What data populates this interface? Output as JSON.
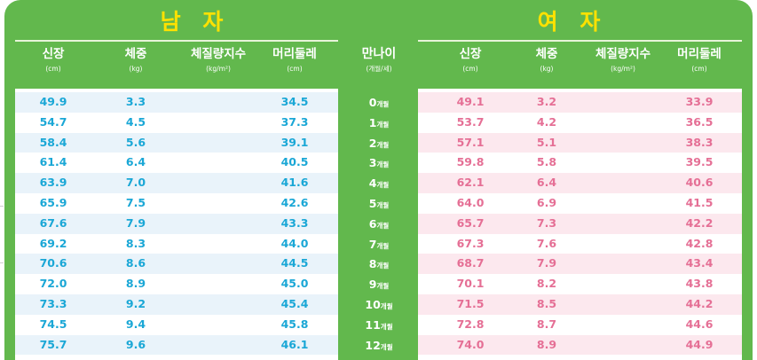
{
  "male": {
    "title": "남 자",
    "headers": [
      {
        "label": "신장",
        "unit": "(cm)"
      },
      {
        "label": "체중",
        "unit": "(kg)"
      },
      {
        "label": "체질량지수",
        "unit": "(kg/m²)"
      },
      {
        "label": "머리둘레",
        "unit": "(cm)"
      }
    ],
    "rows": [
      {
        "height": "49.9",
        "weight": "3.3",
        "bmi": "",
        "head": "34.5"
      },
      {
        "height": "54.7",
        "weight": "4.5",
        "bmi": "",
        "head": "37.3"
      },
      {
        "height": "58.4",
        "weight": "5.6",
        "bmi": "",
        "head": "39.1"
      },
      {
        "height": "61.4",
        "weight": "6.4",
        "bmi": "",
        "head": "40.5"
      },
      {
        "height": "63.9",
        "weight": "7.0",
        "bmi": "",
        "head": "41.6"
      },
      {
        "height": "65.9",
        "weight": "7.5",
        "bmi": "",
        "head": "42.6"
      },
      {
        "height": "67.6",
        "weight": "7.9",
        "bmi": "",
        "head": "43.3"
      },
      {
        "height": "69.2",
        "weight": "8.3",
        "bmi": "",
        "head": "44.0"
      },
      {
        "height": "70.6",
        "weight": "8.6",
        "bmi": "",
        "head": "44.5"
      },
      {
        "height": "72.0",
        "weight": "8.9",
        "bmi": "",
        "head": "45.0"
      },
      {
        "height": "73.3",
        "weight": "9.2",
        "bmi": "",
        "head": "45.4"
      },
      {
        "height": "74.5",
        "weight": "9.4",
        "bmi": "",
        "head": "45.8"
      },
      {
        "height": "75.7",
        "weight": "9.6",
        "bmi": "",
        "head": "46.1"
      }
    ]
  },
  "age": {
    "header": {
      "label": "만나이",
      "unit": "(개월/세)"
    },
    "suffix": "개월",
    "values": [
      "0",
      "1",
      "2",
      "3",
      "4",
      "5",
      "6",
      "7",
      "8",
      "9",
      "10",
      "11",
      "12"
    ]
  },
  "female": {
    "title": "여 자",
    "headers": [
      {
        "label": "신장",
        "unit": "(cm)"
      },
      {
        "label": "체중",
        "unit": "(kg)"
      },
      {
        "label": "체질량지수",
        "unit": "(kg/m²)"
      },
      {
        "label": "머리둘레",
        "unit": "(cm)"
      }
    ],
    "rows": [
      {
        "height": "49.1",
        "weight": "3.2",
        "bmi": "",
        "head": "33.9"
      },
      {
        "height": "53.7",
        "weight": "4.2",
        "bmi": "",
        "head": "36.5"
      },
      {
        "height": "57.1",
        "weight": "5.1",
        "bmi": "",
        "head": "38.3"
      },
      {
        "height": "59.8",
        "weight": "5.8",
        "bmi": "",
        "head": "39.5"
      },
      {
        "height": "62.1",
        "weight": "6.4",
        "bmi": "",
        "head": "40.6"
      },
      {
        "height": "64.0",
        "weight": "6.9",
        "bmi": "",
        "head": "41.5"
      },
      {
        "height": "65.7",
        "weight": "7.3",
        "bmi": "",
        "head": "42.2"
      },
      {
        "height": "67.3",
        "weight": "7.6",
        "bmi": "",
        "head": "42.8"
      },
      {
        "height": "68.7",
        "weight": "7.9",
        "bmi": "",
        "head": "43.4"
      },
      {
        "height": "70.1",
        "weight": "8.2",
        "bmi": "",
        "head": "43.8"
      },
      {
        "height": "71.5",
        "weight": "8.5",
        "bmi": "",
        "head": "44.2"
      },
      {
        "height": "72.8",
        "weight": "8.7",
        "bmi": "",
        "head": "44.6"
      },
      {
        "height": "74.0",
        "weight": "8.9",
        "bmi": "",
        "head": "44.9"
      }
    ]
  },
  "colors": {
    "background": "#62b84d",
    "title": "#ffe100",
    "male_value": "#1aa7d6",
    "female_value": "#e56f95",
    "male_row_alt": "#e9f3fa",
    "female_row_alt": "#fce8ee"
  }
}
